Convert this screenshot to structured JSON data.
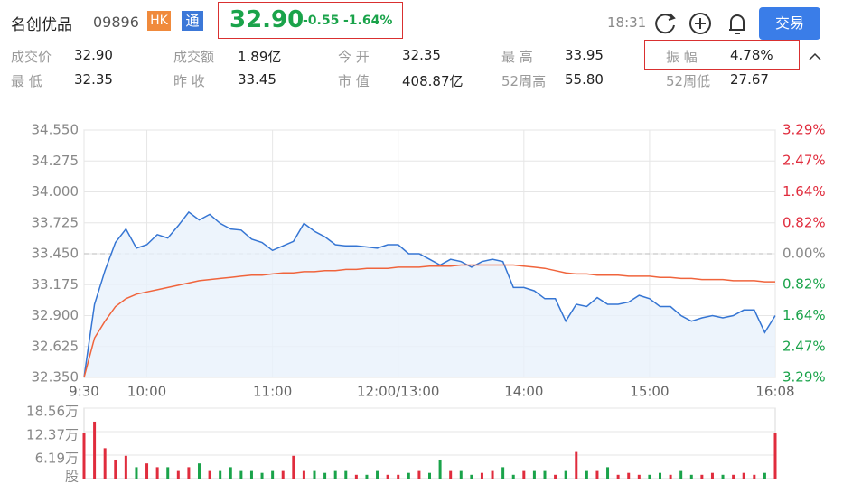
{
  "header": {
    "name": "名创优品",
    "code": "09896",
    "market_badge": "HK",
    "connect_badge": "通",
    "price": "32.90",
    "change": "-0.55",
    "change_pct": "-1.64%",
    "time": "18:31",
    "trade_button": "交易"
  },
  "stats": [
    {
      "label": "成交价",
      "value": "32.90"
    },
    {
      "label": "成交额",
      "value": "1.89亿"
    },
    {
      "label": "今 开",
      "value": "32.35"
    },
    {
      "label": "最 高",
      "value": "33.95"
    },
    {
      "label": "振 幅",
      "value": "4.78%"
    },
    {
      "label": "最 低",
      "value": "32.35"
    },
    {
      "label": "昨 收",
      "value": "33.45"
    },
    {
      "label": "市 值",
      "value": "408.87亿"
    },
    {
      "label": "52周高",
      "value": "55.80"
    },
    {
      "label": "52周低",
      "value": "27.67"
    }
  ],
  "chart_data": [
    {
      "type": "line",
      "x": [
        0,
        5,
        10,
        15,
        20,
        25,
        30,
        35,
        40,
        45,
        50,
        55,
        60,
        65,
        70,
        75,
        80,
        85,
        90,
        95,
        100,
        105,
        110,
        115,
        120,
        125,
        130,
        135,
        140,
        145,
        150,
        155,
        160,
        165,
        170,
        175,
        180,
        185,
        190,
        195,
        200,
        205,
        210,
        215,
        220,
        225,
        230,
        235,
        240,
        245,
        250,
        255,
        260,
        265,
        270,
        275,
        280,
        285,
        290,
        295,
        300,
        305,
        310,
        315,
        320,
        325,
        330
      ],
      "xlim": [
        0,
        330
      ],
      "xticks": [
        {
          "value": 0,
          "label": "9:30"
        },
        {
          "value": 30,
          "label": "10:00"
        },
        {
          "value": 90,
          "label": "11:00"
        },
        {
          "value": 150,
          "label": "12:00/13:00"
        },
        {
          "value": 210,
          "label": "14:00"
        },
        {
          "value": 270,
          "label": "15:00"
        },
        {
          "value": 330,
          "label": "16:08"
        }
      ],
      "ylim": [
        32.35,
        34.55
      ],
      "yticks": [
        {
          "value": 34.55,
          "label": "34.550"
        },
        34.275,
        {
          "value": 34.0,
          "label": "34.000"
        },
        33.725,
        {
          "value": 33.45,
          "label": "33.450"
        },
        33.175,
        {
          "value": 32.9,
          "label": "32.900"
        },
        32.625,
        {
          "value": 32.35,
          "label": "32.350"
        }
      ],
      "y2lim": [
        -3.29,
        3.29
      ],
      "y2ticks": [
        {
          "value": 3.29,
          "label": "3.29%"
        },
        {
          "value": 2.47,
          "label": "2.47%"
        },
        {
          "value": 1.64,
          "label": "1.64%"
        },
        {
          "value": 0.82,
          "label": "0.82%"
        },
        {
          "value": 0,
          "label": "0.00%"
        },
        {
          "value": -0.82,
          "label": "0.82%"
        },
        {
          "value": -1.64,
          "label": "1.64%"
        },
        {
          "value": -2.47,
          "label": "2.47%"
        },
        {
          "value": -3.29,
          "label": "3.29%"
        }
      ],
      "up_color": "#e02c3d",
      "down_color": "#1aa34a",
      "grid": true,
      "series": [
        {
          "color": "#3575d3",
          "values": [
            32.35,
            33.0,
            33.3,
            33.55,
            33.67,
            33.5,
            33.53,
            33.62,
            33.59,
            33.7,
            33.82,
            33.75,
            33.8,
            33.72,
            33.67,
            33.66,
            33.58,
            33.55,
            33.48,
            33.52,
            33.56,
            33.72,
            33.65,
            33.6,
            33.53,
            33.52,
            33.52,
            33.51,
            33.5,
            33.53,
            33.53,
            33.45,
            33.45,
            33.4,
            33.35,
            33.4,
            33.38,
            33.33,
            33.38,
            33.4,
            33.38,
            33.15,
            33.15,
            33.12,
            33.05,
            33.05,
            32.85,
            33.0,
            32.98,
            33.06,
            33.0,
            33.0,
            33.02,
            33.08,
            33.05,
            32.98,
            32.98,
            32.9,
            32.85,
            32.88,
            32.9,
            32.88,
            32.9,
            32.95,
            32.95,
            32.75,
            32.9
          ]
        },
        {
          "color": "#f0643c",
          "values": [
            32.35,
            32.7,
            32.85,
            32.98,
            33.05,
            33.09,
            33.11,
            33.13,
            33.15,
            33.17,
            33.19,
            33.21,
            33.22,
            33.23,
            33.24,
            33.25,
            33.26,
            33.26,
            33.27,
            33.28,
            33.28,
            33.29,
            33.29,
            33.3,
            33.3,
            33.31,
            33.31,
            33.32,
            33.32,
            33.32,
            33.33,
            33.33,
            33.33,
            33.34,
            33.34,
            33.34,
            33.35,
            33.35,
            33.35,
            33.35,
            33.35,
            33.35,
            33.34,
            33.33,
            33.32,
            33.3,
            33.28,
            33.27,
            33.27,
            33.26,
            33.26,
            33.26,
            33.25,
            33.25,
            33.25,
            33.24,
            33.24,
            33.23,
            33.23,
            33.22,
            33.22,
            33.22,
            33.21,
            33.21,
            33.21,
            33.2,
            33.2
          ]
        }
      ]
    },
    {
      "type": "bar",
      "x": [
        0,
        5,
        10,
        15,
        20,
        25,
        30,
        35,
        40,
        45,
        50,
        55,
        60,
        65,
        70,
        75,
        80,
        85,
        90,
        95,
        100,
        105,
        110,
        115,
        120,
        125,
        130,
        135,
        140,
        145,
        150,
        155,
        160,
        165,
        170,
        175,
        180,
        185,
        190,
        195,
        200,
        205,
        210,
        215,
        220,
        225,
        230,
        235,
        240,
        245,
        250,
        255,
        260,
        265,
        270,
        275,
        280,
        285,
        290,
        295,
        300,
        305,
        310,
        315,
        320,
        325,
        330
      ],
      "xlim": [
        0,
        330
      ],
      "ylim": [
        0,
        18.56
      ],
      "yticks": [
        {
          "value": 18.56,
          "label": "18.56万"
        },
        {
          "value": 12.37,
          "label": "12.37万"
        },
        {
          "value": 6.19,
          "label": "6.19万"
        }
      ],
      "ylabel": "股",
      "up_color": "#e02c3d",
      "down_color": "#1aa34a",
      "values": [
        12,
        15,
        8,
        5,
        6,
        3,
        4,
        3,
        3,
        2,
        3,
        4,
        2,
        2,
        3,
        2,
        2,
        1.5,
        2,
        2,
        6,
        2,
        2,
        1.5,
        2,
        2,
        1,
        1,
        2,
        1,
        1,
        1.5,
        2,
        1.5,
        5,
        2,
        2,
        1,
        1.5,
        2,
        3,
        1,
        2,
        2,
        2,
        1,
        2,
        7,
        2,
        2,
        3,
        1,
        1.5,
        1,
        1,
        1.5,
        1,
        2,
        1,
        1,
        1.5,
        1,
        1,
        1.5,
        1,
        1.5,
        12
      ]
    }
  ]
}
